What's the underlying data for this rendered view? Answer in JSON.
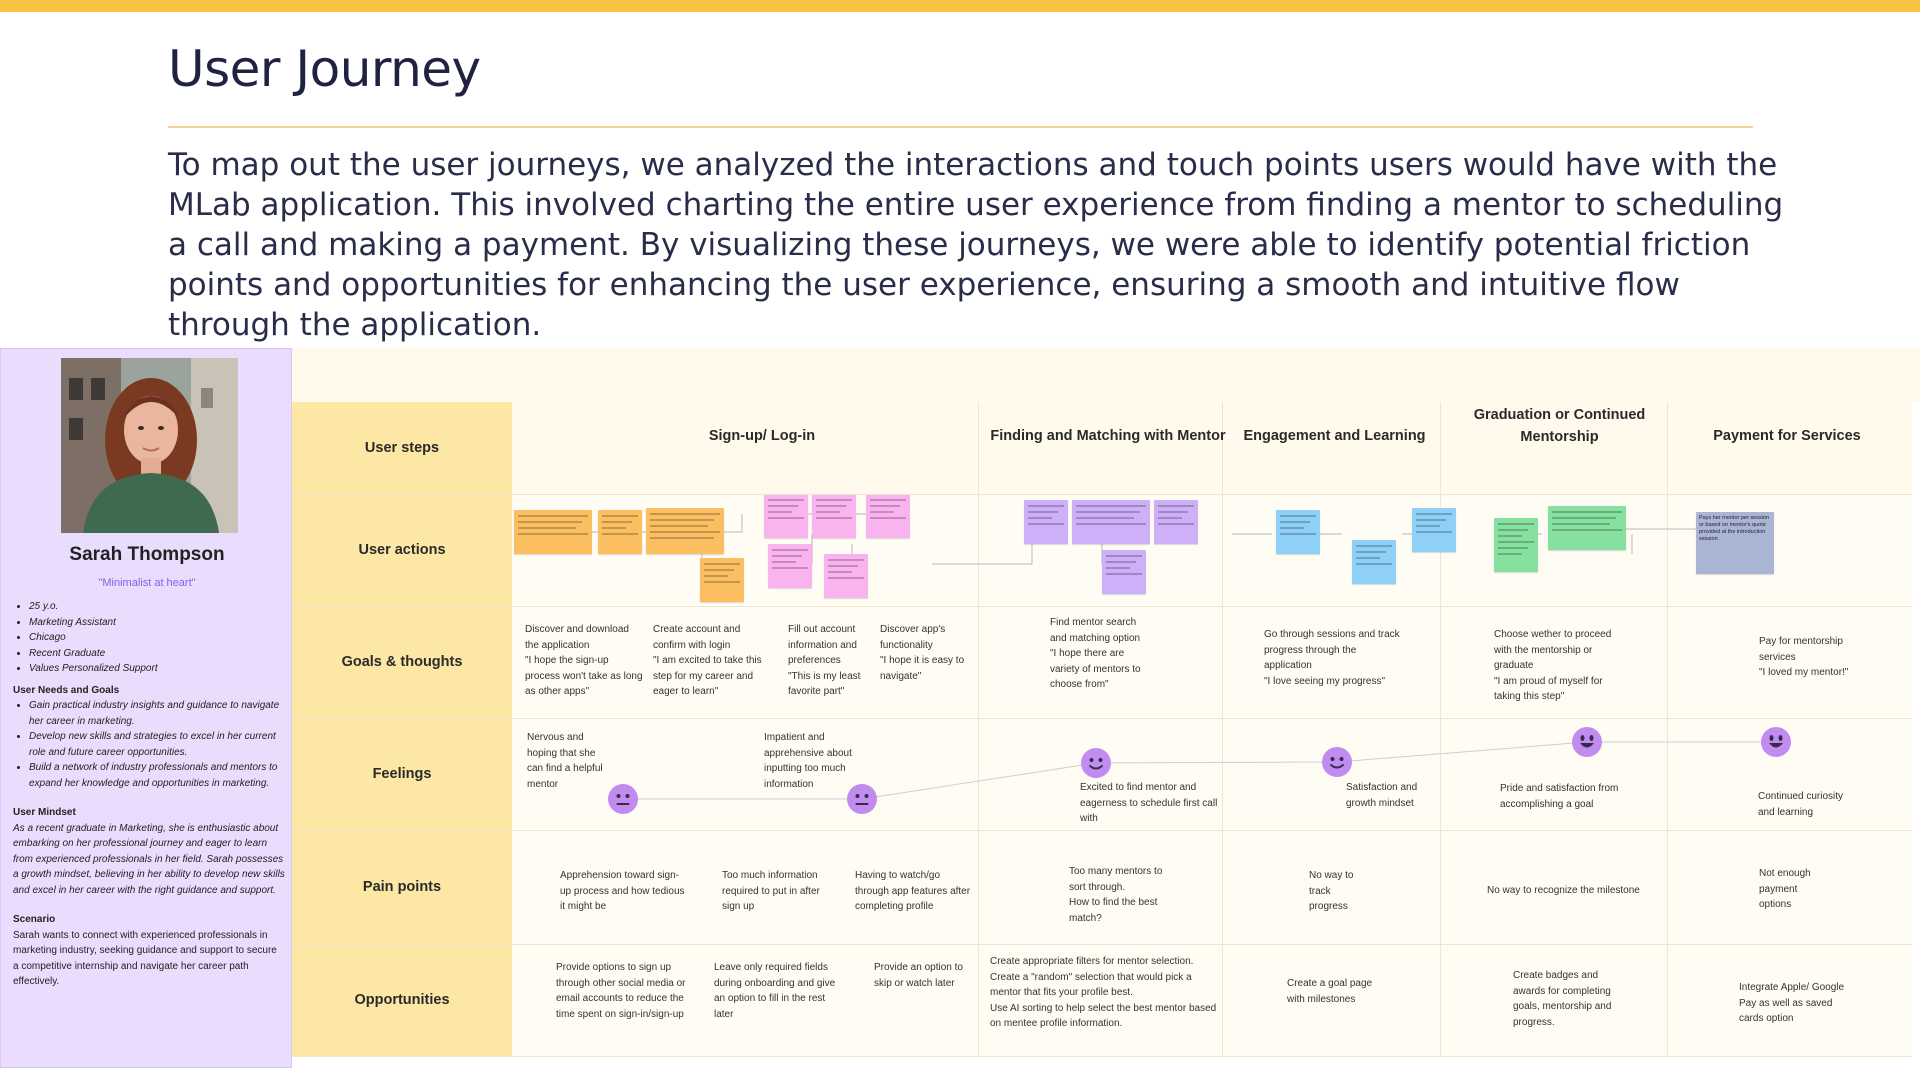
{
  "page": {
    "title": "User Journey",
    "intro": "To map out the user journeys, we analyzed the interactions and touch points users would have with the MLab application. This involved charting the entire user experience from finding a mentor to scheduling a call and making a payment. By visualizing these journeys, we were able to identify potential friction points and opportunities for enhancing the user experience, ensuring a smooth and intuitive flow through the application."
  },
  "persona": {
    "name": "Sarah Thompson",
    "quote": "\"Minimalist at heart\"",
    "facts": [
      "25 y.o.",
      "Marketing Assistant",
      "Chicago",
      "Recent Graduate",
      "Values Personalized Support"
    ],
    "needs_title": "User Needs and Goals",
    "needs": [
      "Gain practical industry insights and guidance to navigate her career in marketing.",
      "Develop new skills and strategies to excel in her current role and future career opportunities.",
      "Build a network of industry professionals and mentors to expand her knowledge and opportunities in marketing."
    ],
    "mindset_title": "User Mindset",
    "mindset": "As a recent graduate in Marketing, she is enthusiastic about embarking on her professional journey and eager to learn from experienced professionals in her field. Sarah possesses a growth mindset, believing in her ability to develop new skills and excel in her career with the right guidance and support.",
    "scenario_title": "Scenario",
    "scenario": "Sarah wants to connect with experienced professionals in marketing industry, seeking guidance and support to secure a competitive internship and navigate her career path effectively."
  },
  "rows": {
    "steps": "User steps",
    "actions": "User actions",
    "goals": "Goals & thoughts",
    "feelings": "Feelings",
    "pain": "Pain points",
    "opps": "Opportunities"
  },
  "stages": [
    "Sign-up/ Log-in",
    "Finding and Matching with Mentor",
    "Engagement and Learning",
    "Graduation or Continued Mentorship",
    "Payment for Services"
  ],
  "goals": [
    "Discover and download the application\n\"I hope the sign-up process won't take as long as other apps\"",
    "Create account and confirm with login\n\"I am excited to take this step for my career and eager to learn\"",
    "Fill out account information and preferences\n\"This is my least favorite part\"",
    "Discover app's functionality\n\"I hope it is easy to navigate\"",
    "Find mentor search and matching option\n\"I hope there are variety of mentors to choose from\"",
    "Go through sessions and track progress through the application\n\"I love seeing my progress\"",
    "Choose wether to proceed with the mentorship or graduate\n\"I am proud of myself for taking this step\"",
    "Pay for mentorship services\n\"I loved my mentor!\""
  ],
  "feelings": [
    "Nervous and hoping that she can find a helpful mentor",
    "Impatient and apprehensive about inputting too much information",
    "Excited to find mentor and eagerness to schedule first call with",
    "Satisfaction and growth mindset",
    "Pride and satisfaction from accomplishing a goal",
    "Continued curiosity and learning"
  ],
  "pain": [
    "Apprehension toward sign-up process and how tedious it might be",
    "Too much information required to put in after sign up",
    "Having to watch/go through app features after completing profile",
    "Too many mentors to sort through.\nHow to find the best match?",
    "No way to track progress",
    "No way to recognize the milestone",
    "Not enough payment options"
  ],
  "opps": [
    "Provide options to sign up through other social media or email accounts to reduce the time spent on sign-in/sign-up",
    "Leave only required fields during onboarding and give an option to fill in the rest later",
    "Provide an option to skip or watch later",
    "Create appropriate filters for mentor selection.\nCreate a \"random\" selection that would pick a mentor that fits your profile best.\nUse AI sorting to help select the best mentor based on mentee profile information.",
    "Create a goal page with milestones",
    "Create badges and awards for completing goals, mentorship and progress.",
    "Integrate Apple/ Google Pay as well as saved cards option"
  ],
  "sticky_notes": {
    "colors": {
      "orange": "#fbbf62",
      "pink": "#f9b3ee",
      "purple": "#cdb0f8",
      "blue": "#8fd0f6",
      "green": "#86e0a0",
      "slate": "#a9b5d3"
    },
    "payment_note": "Pays her mentor per session or based on mentor's quote provided at the introduction session."
  },
  "colors": {
    "accent": "#f6c343",
    "face": "#c18cf0",
    "label_bg": "#fde7a4",
    "persona_bg": "#eadcfc"
  }
}
